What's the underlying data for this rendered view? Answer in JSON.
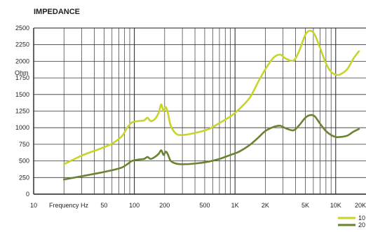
{
  "chart_data": {
    "type": "line",
    "title": "IMPEDANCE",
    "xlabel": "Frequency Hz",
    "ylabel": "Ohm",
    "x_scale": "log",
    "xlim": [
      10,
      20000
    ],
    "ylim": [
      0,
      2500
    ],
    "grid": true,
    "legend_position": "bottom-right",
    "x_tick_labels": [
      {
        "value": 10,
        "label": "10"
      },
      {
        "value": 50,
        "label": "50"
      },
      {
        "value": 100,
        "label": "100"
      },
      {
        "value": 200,
        "label": "200"
      },
      {
        "value": 500,
        "label": "500"
      },
      {
        "value": 1000,
        "label": "1K"
      },
      {
        "value": 2000,
        "label": "2K"
      },
      {
        "value": 5000,
        "label": "5K"
      },
      {
        "value": 10000,
        "label": "10K"
      },
      {
        "value": 20000,
        "label": "20K"
      }
    ],
    "y_ticks": [
      0,
      250,
      500,
      750,
      1000,
      1250,
      1500,
      1750,
      2000,
      2250,
      2500
    ],
    "series": [
      {
        "name": "10",
        "color": "#c8d42a",
        "points": [
          [
            20,
            450
          ],
          [
            30,
            580
          ],
          [
            45,
            680
          ],
          [
            60,
            760
          ],
          [
            75,
            870
          ],
          [
            85,
            1000
          ],
          [
            95,
            1080
          ],
          [
            110,
            1100
          ],
          [
            125,
            1110
          ],
          [
            135,
            1150
          ],
          [
            145,
            1100
          ],
          [
            160,
            1130
          ],
          [
            175,
            1230
          ],
          [
            185,
            1350
          ],
          [
            195,
            1250
          ],
          [
            205,
            1310
          ],
          [
            215,
            1230
          ],
          [
            230,
            1030
          ],
          [
            260,
            910
          ],
          [
            300,
            890
          ],
          [
            400,
            920
          ],
          [
            550,
            980
          ],
          [
            700,
            1070
          ],
          [
            900,
            1170
          ],
          [
            1100,
            1280
          ],
          [
            1400,
            1450
          ],
          [
            1700,
            1690
          ],
          [
            2000,
            1880
          ],
          [
            2400,
            2050
          ],
          [
            2800,
            2100
          ],
          [
            3200,
            2040
          ],
          [
            3800,
            2010
          ],
          [
            4300,
            2140
          ],
          [
            5000,
            2400
          ],
          [
            5600,
            2460
          ],
          [
            6200,
            2400
          ],
          [
            7000,
            2200
          ],
          [
            8000,
            1970
          ],
          [
            9000,
            1840
          ],
          [
            10000,
            1800
          ],
          [
            11000,
            1800
          ],
          [
            13000,
            1880
          ],
          [
            15000,
            2040
          ],
          [
            17000,
            2150
          ]
        ]
      },
      {
        "name": "20",
        "color": "#6b8232",
        "points": [
          [
            20,
            220
          ],
          [
            30,
            270
          ],
          [
            45,
            320
          ],
          [
            60,
            360
          ],
          [
            75,
            400
          ],
          [
            85,
            450
          ],
          [
            95,
            500
          ],
          [
            110,
            520
          ],
          [
            125,
            530
          ],
          [
            135,
            560
          ],
          [
            145,
            530
          ],
          [
            160,
            560
          ],
          [
            175,
            610
          ],
          [
            185,
            660
          ],
          [
            195,
            590
          ],
          [
            205,
            640
          ],
          [
            215,
            600
          ],
          [
            230,
            500
          ],
          [
            260,
            460
          ],
          [
            300,
            450
          ],
          [
            400,
            460
          ],
          [
            550,
            490
          ],
          [
            700,
            530
          ],
          [
            900,
            590
          ],
          [
            1100,
            640
          ],
          [
            1400,
            740
          ],
          [
            1700,
            850
          ],
          [
            2000,
            950
          ],
          [
            2400,
            1010
          ],
          [
            2800,
            1030
          ],
          [
            3200,
            990
          ],
          [
            3800,
            960
          ],
          [
            4300,
            1030
          ],
          [
            5000,
            1150
          ],
          [
            5600,
            1190
          ],
          [
            6200,
            1170
          ],
          [
            7000,
            1060
          ],
          [
            8000,
            950
          ],
          [
            9000,
            890
          ],
          [
            10000,
            860
          ],
          [
            11000,
            860
          ],
          [
            13000,
            880
          ],
          [
            15000,
            940
          ],
          [
            17000,
            980
          ]
        ]
      }
    ]
  }
}
